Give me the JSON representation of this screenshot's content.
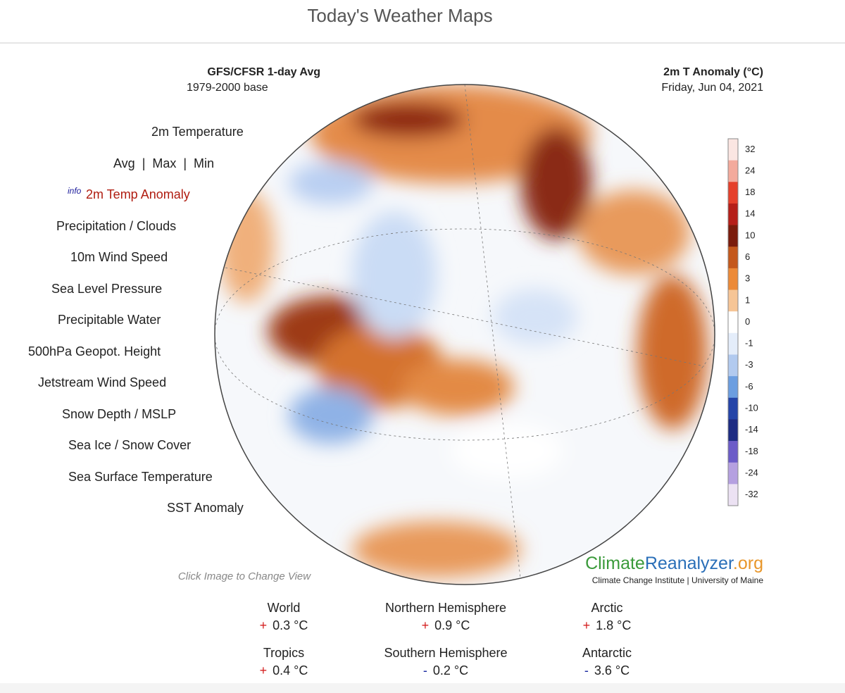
{
  "page_title": "Today's Weather Maps",
  "map_header": {
    "left": [
      "GFS/CFSR 1-day Avg",
      "1979-2000 base"
    ],
    "right": [
      "2m T Anomaly (°C)",
      "Friday, Jun 04, 2021"
    ]
  },
  "menu": {
    "info": "info",
    "items": [
      "2m Temperature",
      "Avg  |  Max  |  Min",
      "2m Temp Anomaly",
      "Precipitation / Clouds",
      "10m Wind Speed",
      "Sea Level Pressure",
      "Precipitable Water",
      "500hPa Geopot. Height",
      "Jetstream Wind Speed",
      "Snow Depth / MSLP",
      "Sea Ice / Snow Cover",
      "Sea Surface Temperature",
      "SST Anomaly"
    ],
    "active": 2
  },
  "colorbar": {
    "labels": [
      "32",
      "24",
      "18",
      "14",
      "10",
      "6",
      "3",
      "1",
      "0",
      "-1",
      "-3",
      "-6",
      "-10",
      "-14",
      "-18",
      "-24",
      "-32"
    ],
    "colors": [
      "#fbe6e2",
      "#f3aa9c",
      "#e5402b",
      "#b51f19",
      "#7a1c0c",
      "#c4581c",
      "#ec8a38",
      "#f6c596",
      "#ffffff",
      "#e4edfa",
      "#b2caef",
      "#6c9ee0",
      "#2444a8",
      "#1d2b82",
      "#6c5cc8",
      "#b5a0e0",
      "#ece2f3"
    ]
  },
  "hint": "Click Image to Change View",
  "logo": {
    "parts": [
      "Climate",
      "Reanalyzer",
      ".org"
    ],
    "subtitle": "Climate Change Institute | University of Maine"
  },
  "stats": [
    {
      "label": "World",
      "sign": "+",
      "value": "0.3 °C"
    },
    {
      "label": "Northern Hemisphere",
      "sign": "+",
      "value": "0.9 °C"
    },
    {
      "label": "Arctic",
      "sign": "+",
      "value": "1.8 °C"
    },
    {
      "label": "Tropics",
      "sign": "+",
      "value": "0.4 °C"
    },
    {
      "label": "Southern Hemisphere",
      "sign": "-",
      "value": "0.2 °C"
    },
    {
      "label": "Antarctic",
      "sign": "-",
      "value": "3.6 °C"
    }
  ]
}
